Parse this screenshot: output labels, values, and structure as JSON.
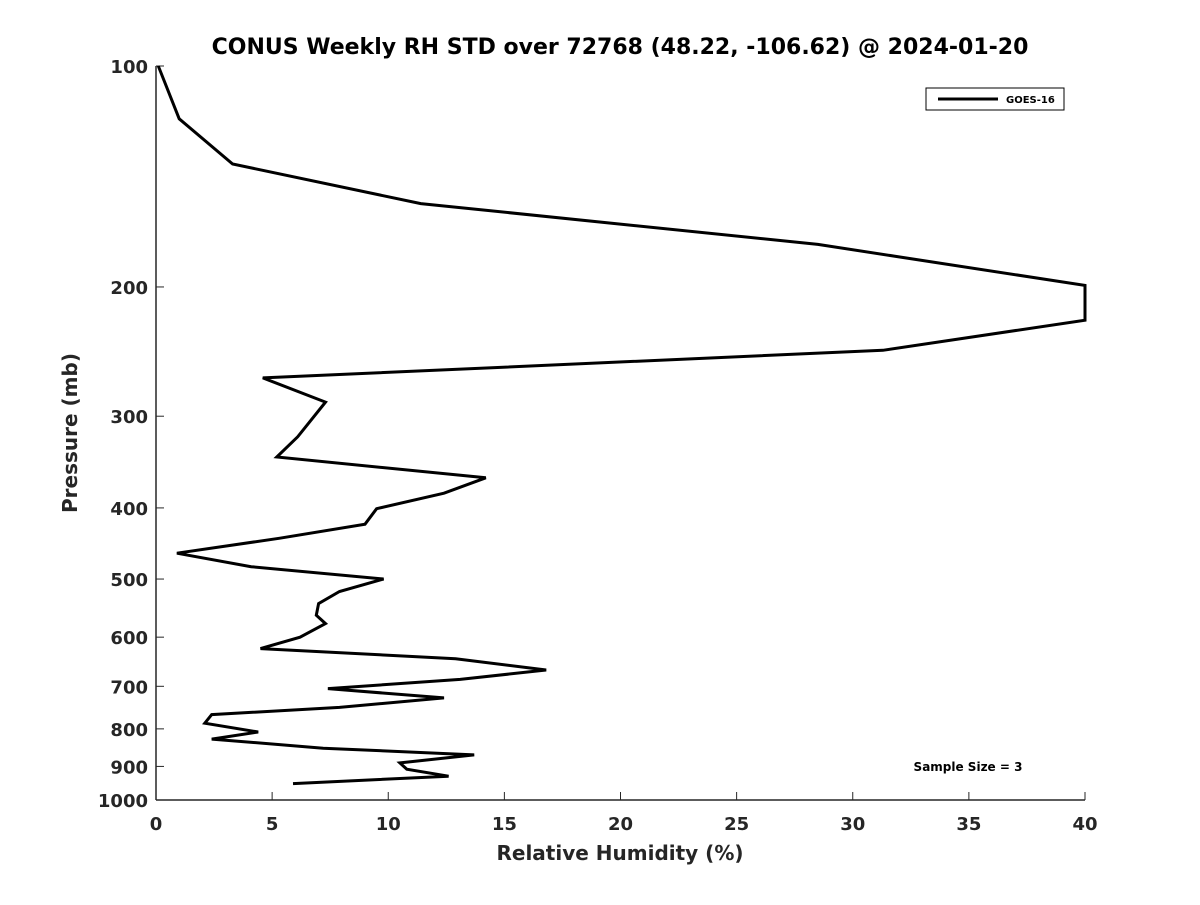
{
  "chart_data": {
    "type": "line",
    "title": "CONUS Weekly RH STD over 72768 (48.22, -106.62) @ 2024-01-20",
    "xlabel": "Relative Humidity (%)",
    "ylabel": "Pressure (mb)",
    "xlim": [
      0,
      40
    ],
    "ylim": [
      100,
      1000
    ],
    "yscale": "log",
    "yreversed": true,
    "grid": false,
    "x_ticks": [
      0,
      5,
      10,
      15,
      20,
      25,
      30,
      35,
      40
    ],
    "y_ticks": [
      100,
      200,
      300,
      400,
      500,
      600,
      700,
      800,
      900,
      1000
    ],
    "legend_position": "top-right",
    "annotation": "Sample Size = 3",
    "series": [
      {
        "name": "GOES-16",
        "color": "#000000",
        "points": [
          [
            0.1,
            100
          ],
          [
            1.0,
            118
          ],
          [
            3.3,
            136
          ],
          [
            11.4,
            154
          ],
          [
            28.5,
            175
          ],
          [
            40.0,
            199
          ],
          [
            40.0,
            222
          ],
          [
            31.3,
            244
          ],
          [
            4.6,
            266
          ],
          [
            7.3,
            287
          ],
          [
            6.1,
            320
          ],
          [
            5.2,
            341
          ],
          [
            14.2,
            364
          ],
          [
            12.4,
            382
          ],
          [
            9.5,
            401
          ],
          [
            9.0,
            421
          ],
          [
            5.3,
            440
          ],
          [
            0.9,
            461
          ],
          [
            4.1,
            481
          ],
          [
            9.8,
            500
          ],
          [
            7.9,
            520
          ],
          [
            7.0,
            540
          ],
          [
            6.9,
            560
          ],
          [
            7.3,
            575
          ],
          [
            6.2,
            600
          ],
          [
            4.5,
            622
          ],
          [
            12.9,
            642
          ],
          [
            16.8,
            665
          ],
          [
            13.1,
            685
          ],
          [
            7.4,
            705
          ],
          [
            12.4,
            726
          ],
          [
            7.9,
            748
          ],
          [
            2.4,
            765
          ],
          [
            2.1,
            786
          ],
          [
            4.4,
            808
          ],
          [
            2.4,
            826
          ],
          [
            7.2,
            850
          ],
          [
            13.7,
            868
          ],
          [
            10.5,
            890
          ],
          [
            10.8,
            908
          ],
          [
            12.6,
            928
          ],
          [
            5.9,
            950
          ]
        ]
      }
    ]
  }
}
